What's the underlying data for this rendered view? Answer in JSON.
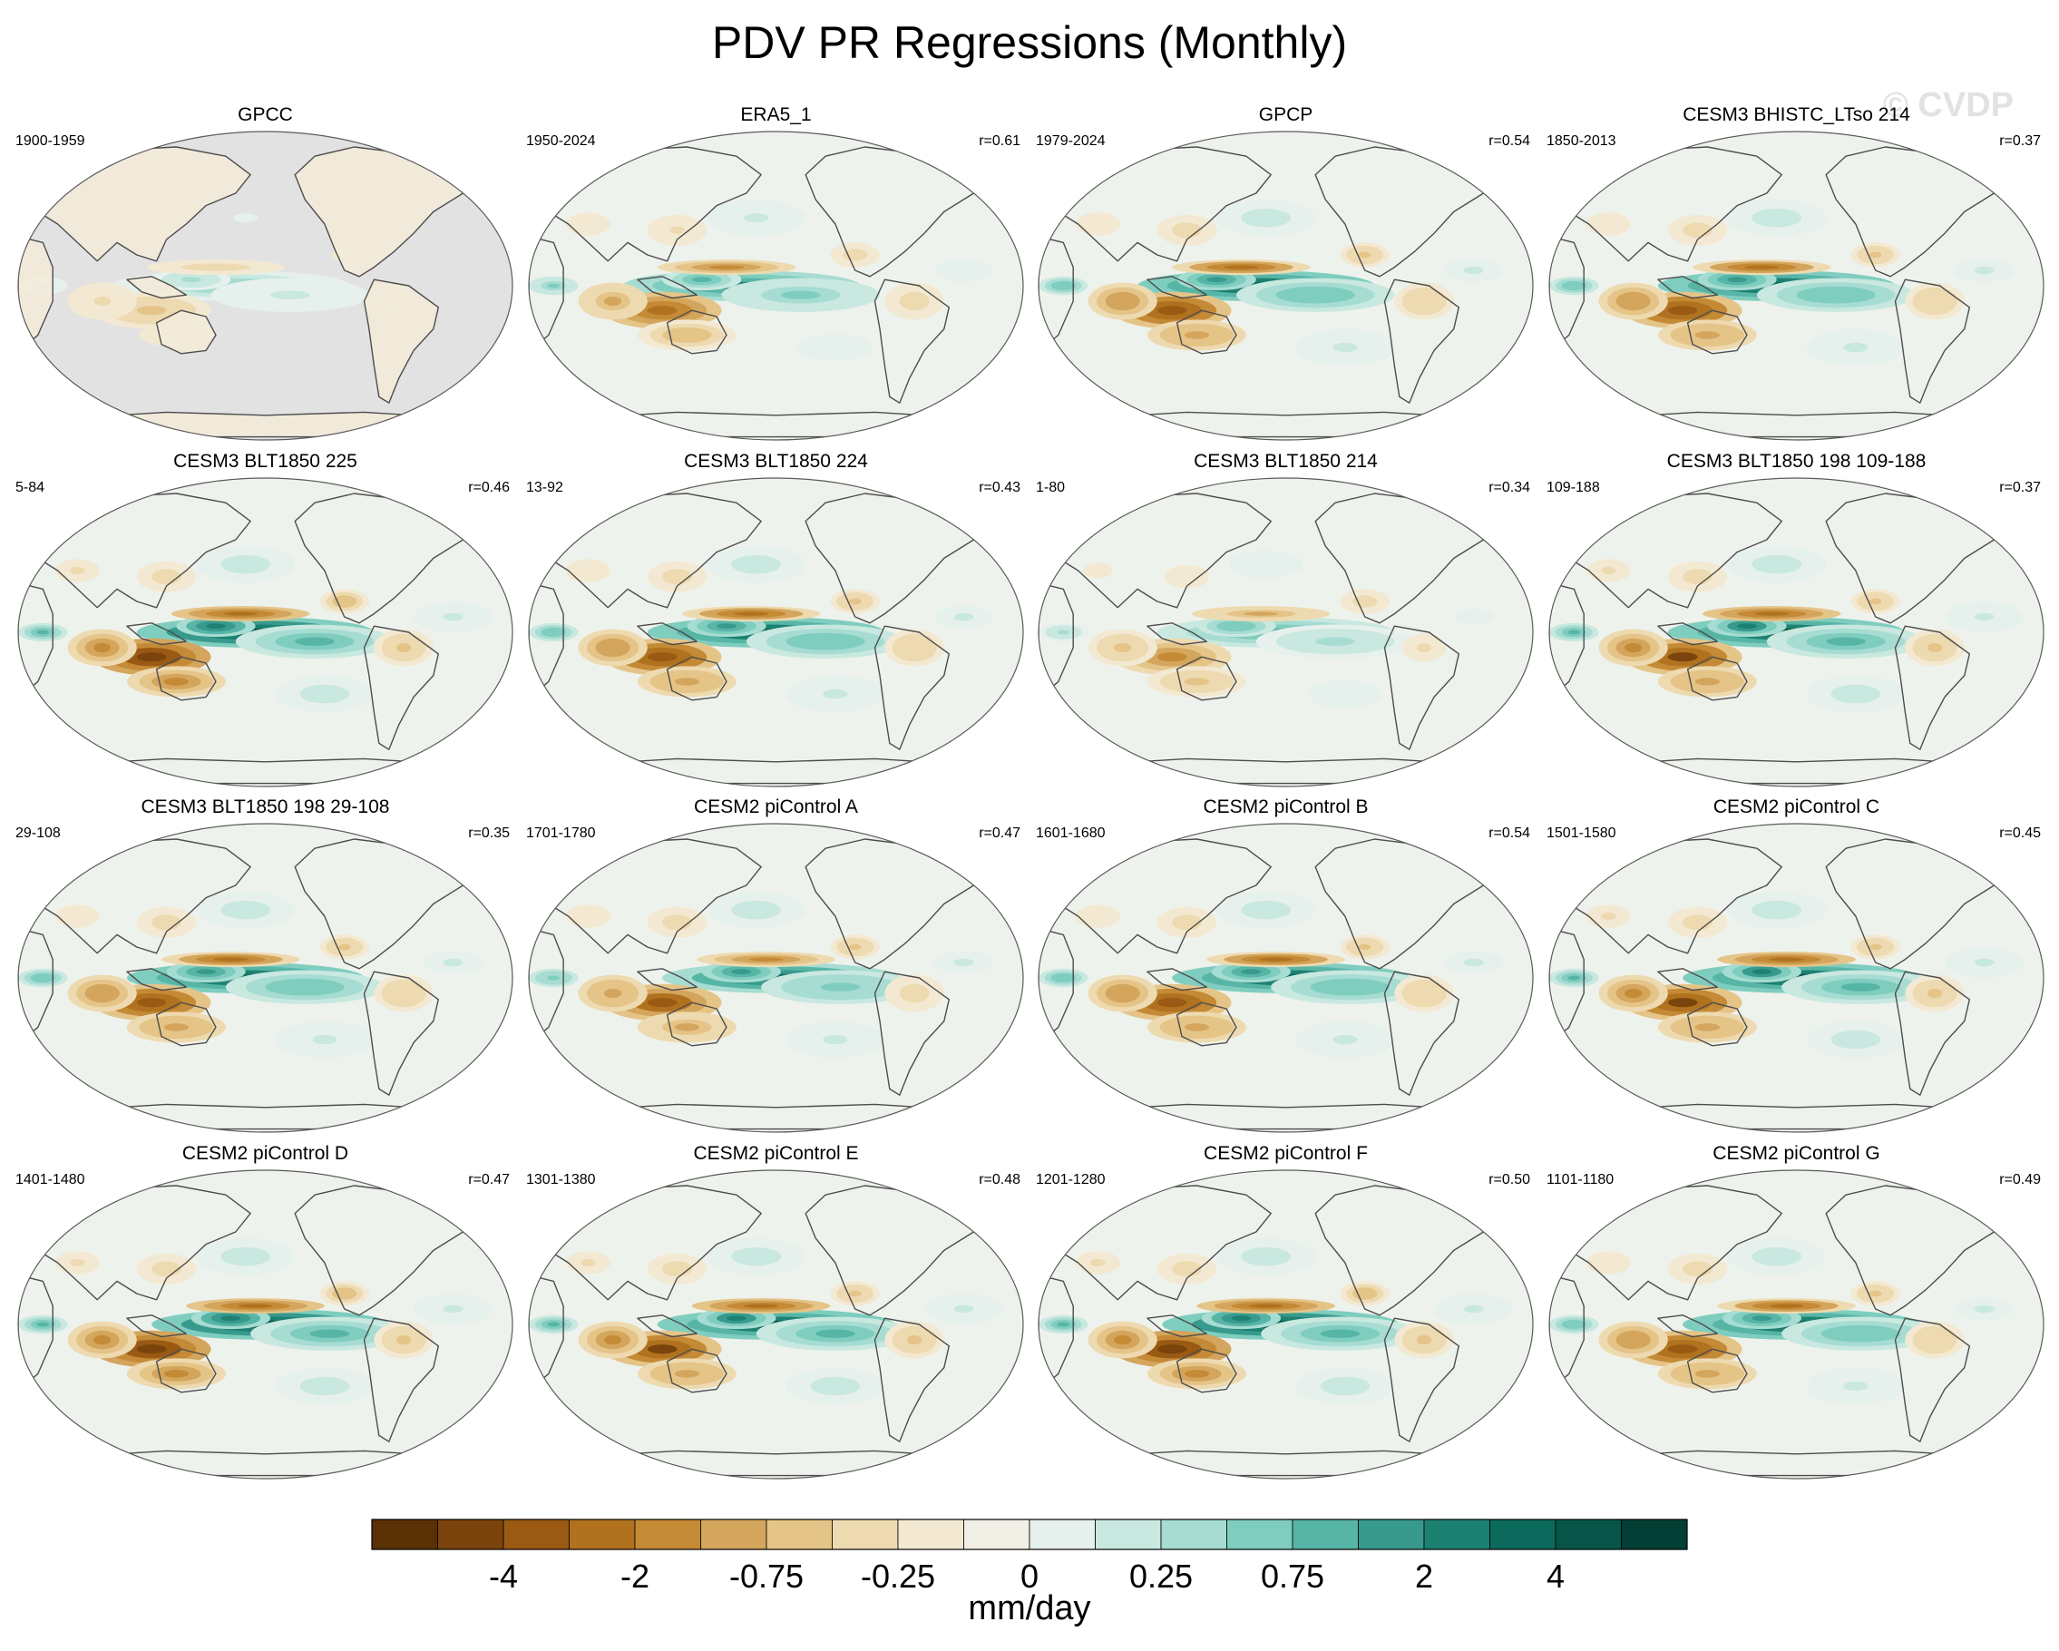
{
  "chart_data": {
    "type": "heatmap",
    "title": "PDV PR Regressions (Monthly)",
    "watermark": "© CVDP",
    "projection": "Robinson, Pacific-centered",
    "field_values_note": "Gridded map values are not printed in the figure; only text, scale and the r statistics are transcribed.",
    "panels": [
      {
        "name": "GPCC",
        "years": "1900-1959",
        "r": "",
        "masked_ocean": true
      },
      {
        "name": "ERA5_1",
        "years": "1950-2024",
        "r": "r=0.61"
      },
      {
        "name": "GPCP",
        "years": "1979-2024",
        "r": "r=0.54"
      },
      {
        "name": "CESM3 BHISTC_LTso 214",
        "years": "1850-2013",
        "r": "r=0.37"
      },
      {
        "name": "CESM3 BLT1850 225",
        "years": "5-84",
        "r": "r=0.46"
      },
      {
        "name": "CESM3 BLT1850 224",
        "years": "13-92",
        "r": "r=0.43"
      },
      {
        "name": "CESM3 BLT1850 214",
        "years": "1-80",
        "r": "r=0.34"
      },
      {
        "name": "CESM3 BLT1850 198 109-188",
        "years": "109-188",
        "r": "r=0.37"
      },
      {
        "name": "CESM3 BLT1850 198 29-108",
        "years": "29-108",
        "r": "r=0.35"
      },
      {
        "name": "CESM2 piControl A",
        "years": "1701-1780",
        "r": "r=0.47"
      },
      {
        "name": "CESM2 piControl B",
        "years": "1601-1680",
        "r": "r=0.54"
      },
      {
        "name": "CESM2 piControl C",
        "years": "1501-1580",
        "r": "r=0.45"
      },
      {
        "name": "CESM2 piControl D",
        "years": "1401-1480",
        "r": "r=0.47"
      },
      {
        "name": "CESM2 piControl E",
        "years": "1301-1380",
        "r": "r=0.48"
      },
      {
        "name": "CESM2 piControl F",
        "years": "1201-1280",
        "r": "r=0.50"
      },
      {
        "name": "CESM2 piControl G",
        "years": "1101-1180",
        "r": "r=0.49"
      }
    ],
    "colorbar": {
      "label": "mm/day",
      "colors": [
        "#5a3005",
        "#7a440c",
        "#9a5a14",
        "#b0721f",
        "#c48a35",
        "#d4a55c",
        "#e5c488",
        "#eedab0",
        "#f3e9d2",
        "#f2efe6",
        "#e6f0ec",
        "#c8e8e0",
        "#a6dcd2",
        "#7fcdbf",
        "#57b5a6",
        "#379a8d",
        "#1d8172",
        "#0b6a5b",
        "#075548",
        "#033f34"
      ],
      "tick_labels": [
        "-4",
        "-2",
        "-0.75",
        "-0.25",
        "0",
        "0.25",
        "0.75",
        "2",
        "4"
      ],
      "tick_boundaries": [
        2,
        4,
        6,
        8,
        10,
        12,
        14,
        16,
        18
      ]
    },
    "map_colors": {
      "land_mask": "#e2e2e2",
      "coast": "#4d4d4d",
      "ocean_base": "#eef2ec"
    }
  }
}
